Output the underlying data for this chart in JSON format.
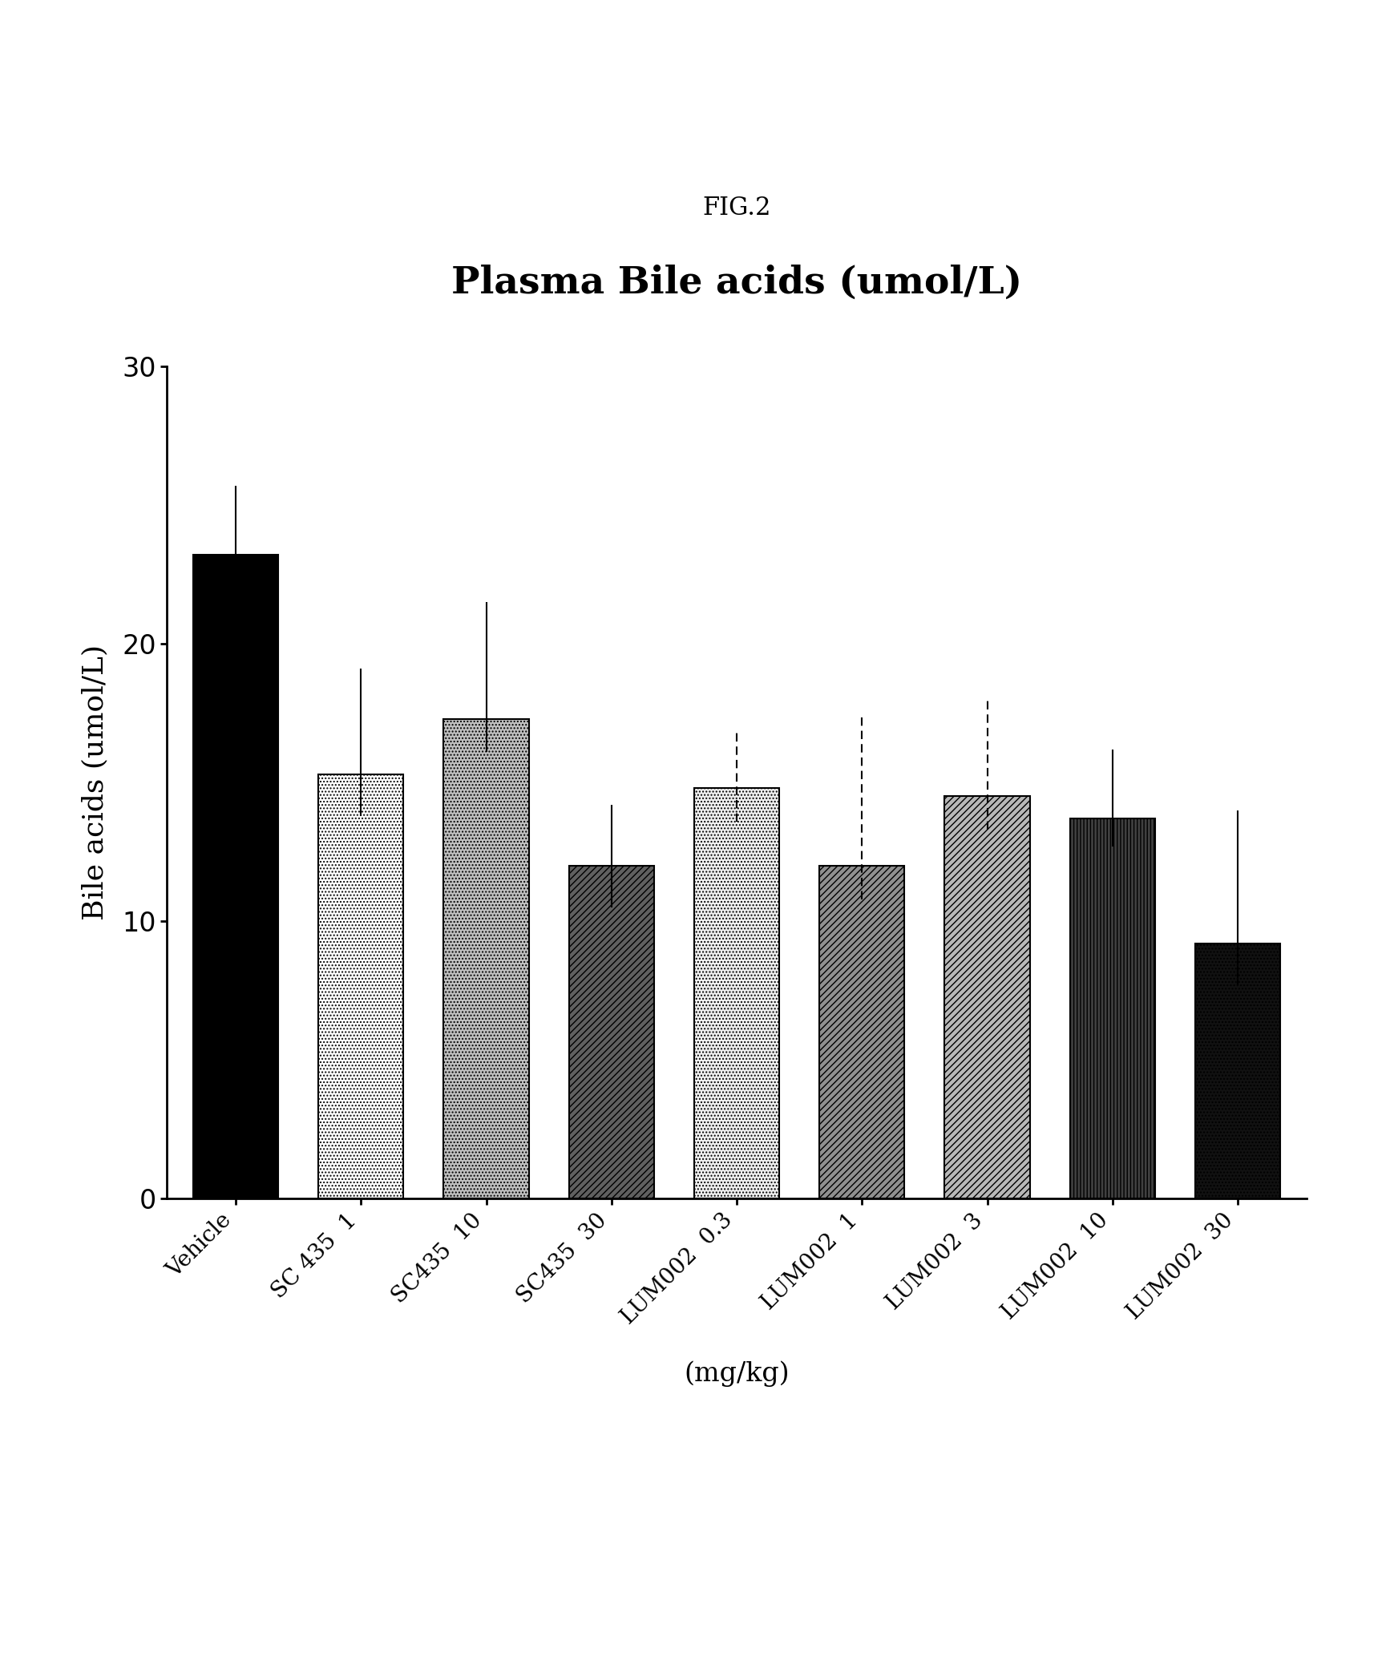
{
  "title": "Plasma Bile acids (umol/L)",
  "fig_label": "FIG.2",
  "ylabel": "Bile acids (umol/L)",
  "xlabel": "(mg/kg)",
  "categories": [
    "Vehicle",
    "SC 435  1",
    "SC435  10",
    "SC435  30",
    "LUM002  0.3",
    "LUM002  1",
    "LUM002  3",
    "LUM002  10",
    "LUM002  30"
  ],
  "values": [
    23.2,
    15.3,
    17.3,
    12.0,
    14.8,
    12.0,
    14.5,
    13.7,
    9.2
  ],
  "errors_upper": [
    2.5,
    3.8,
    4.2,
    2.2,
    2.0,
    5.5,
    3.5,
    2.5,
    4.8
  ],
  "errors_lower": [
    1.0,
    1.5,
    1.2,
    1.5,
    1.2,
    1.2,
    1.2,
    1.0,
    1.5
  ],
  "ylim": [
    0,
    30
  ],
  "yticks": [
    0,
    10,
    20,
    30
  ],
  "background_color": "#ffffff",
  "bars_config": [
    {
      "facecolor": "#000000",
      "hatch": null,
      "edgecolor": "#000000",
      "error_style": "solid"
    },
    {
      "facecolor": "#ffffff",
      "hatch": "....",
      "edgecolor": "#000000",
      "error_style": "solid"
    },
    {
      "facecolor": "#c0c0c0",
      "hatch": "....",
      "edgecolor": "#000000",
      "error_style": "solid"
    },
    {
      "facecolor": "#606060",
      "hatch": "////",
      "edgecolor": "#000000",
      "error_style": "solid"
    },
    {
      "facecolor": "#f0f0f0",
      "hatch": "....",
      "edgecolor": "#000000",
      "error_style": "dashed"
    },
    {
      "facecolor": "#909090",
      "hatch": "////",
      "edgecolor": "#000000",
      "error_style": "dashed"
    },
    {
      "facecolor": "#b8b8b8",
      "hatch": "////",
      "edgecolor": "#000000",
      "error_style": "dashed"
    },
    {
      "facecolor": "#404040",
      "hatch": "||||",
      "edgecolor": "#000000",
      "error_style": "solid"
    },
    {
      "facecolor": "#111111",
      "hatch": "....",
      "edgecolor": "#000000",
      "error_style": "solid"
    }
  ]
}
